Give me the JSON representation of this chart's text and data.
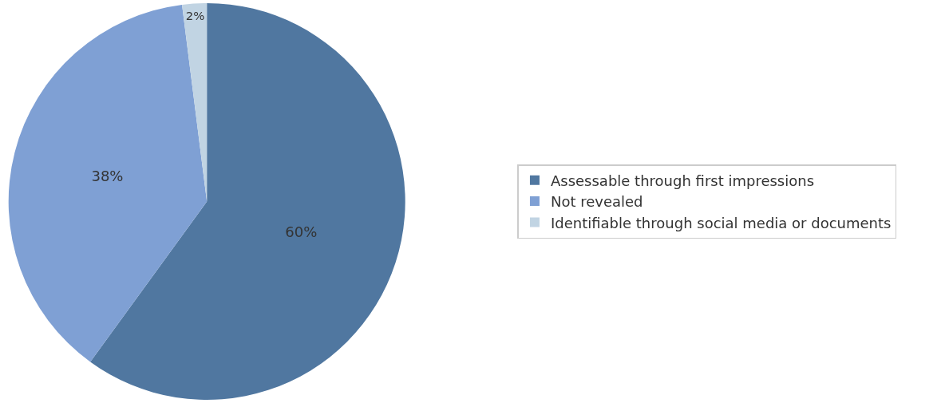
{
  "chart_data": {
    "type": "pie",
    "categories": [
      "Assessable through first impressions",
      "Not revealed",
      "Identifiable through social media or documents"
    ],
    "values": [
      60,
      38,
      2
    ],
    "colors": [
      "#5077a0",
      "#7fa0d4",
      "#c1d4e3"
    ],
    "value_labels": [
      "60%",
      "38%",
      "2%"
    ],
    "legend": "right"
  }
}
